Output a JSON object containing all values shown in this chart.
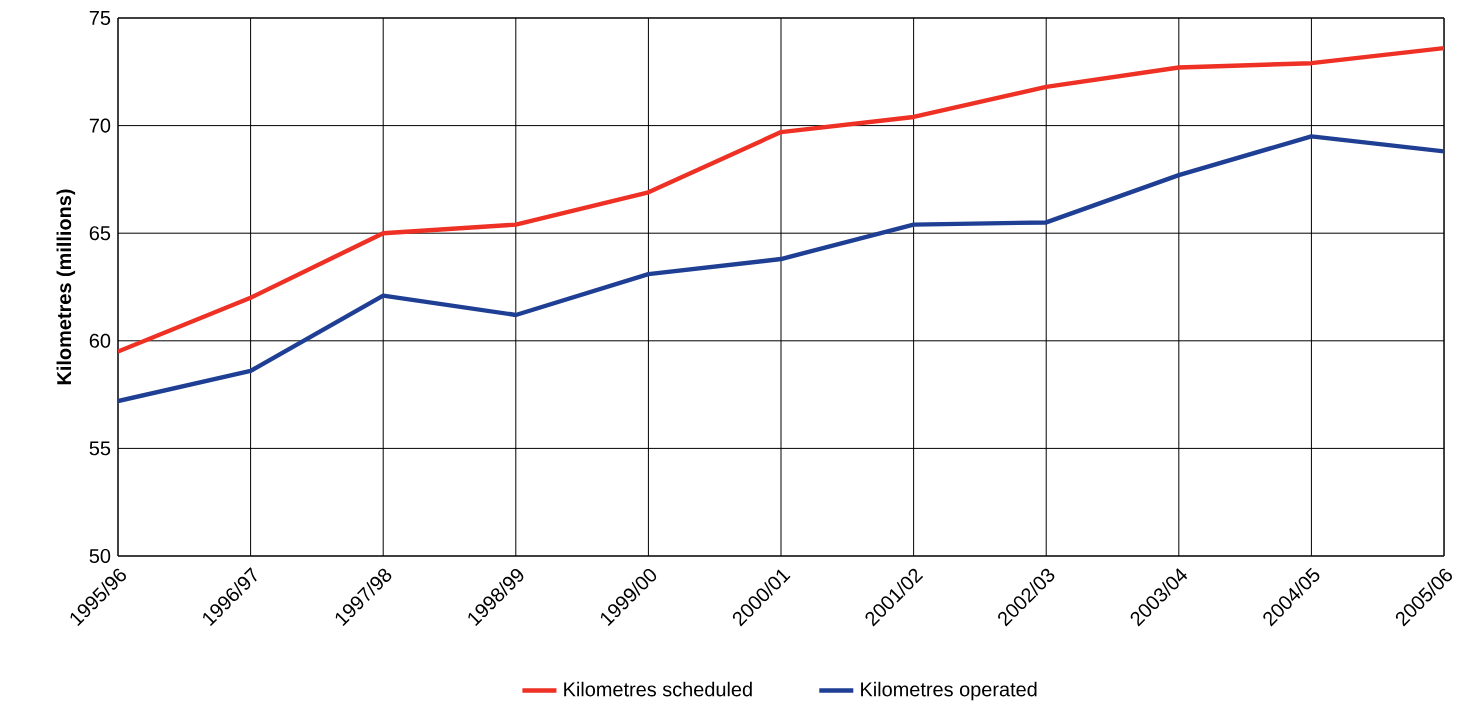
{
  "chart_data": {
    "type": "line",
    "ylabel": "Kilometres (millions)",
    "categories": [
      "1995/96",
      "1996/97",
      "1997/98",
      "1998/99",
      "1999/00",
      "2000/01",
      "2001/02",
      "2002/03",
      "2003/04",
      "2004/05",
      "2005/06"
    ],
    "series": [
      {
        "name": "Kilometres scheduled",
        "color": "#ee3124",
        "values": [
          59.5,
          62.0,
          65.0,
          65.4,
          66.9,
          69.7,
          70.4,
          71.8,
          72.7,
          72.9,
          73.6
        ]
      },
      {
        "name": "Kilometres operated",
        "color": "#1f3f94",
        "values": [
          57.2,
          58.6,
          62.1,
          61.2,
          63.1,
          63.8,
          65.4,
          65.5,
          67.7,
          69.5,
          68.8
        ]
      }
    ],
    "ylim": [
      50,
      75
    ],
    "yticks": [
      50,
      55,
      60,
      65,
      70,
      75
    ],
    "grid": true,
    "legend": "bottom"
  }
}
